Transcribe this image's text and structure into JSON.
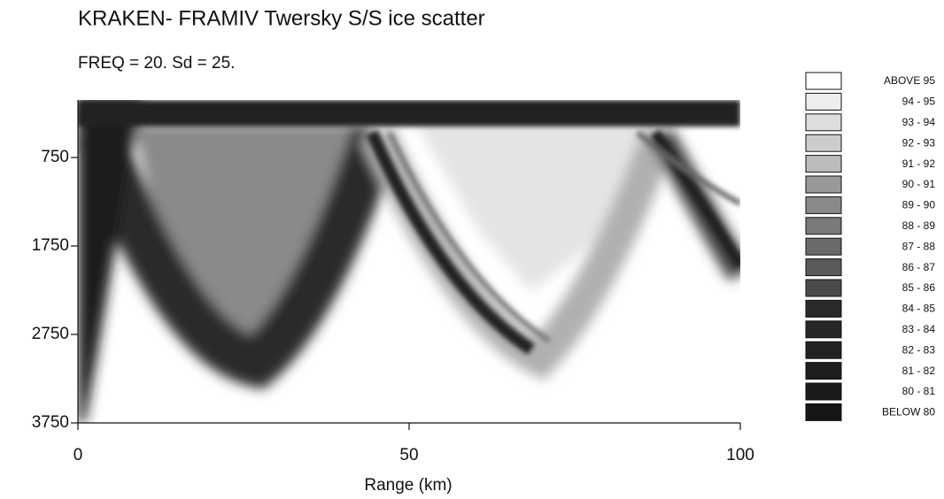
{
  "chart_data": {
    "type": "heatmap",
    "title": "KRAKEN- FRAMIV Twersky S/S ice scatter",
    "subtitle": "FREQ = 20.   Sd = 25.",
    "x_label": "Range (km)",
    "xlim": [
      0,
      100
    ],
    "xticks": [
      0,
      50,
      100
    ],
    "ylim": [
      100,
      3750
    ],
    "yticks": [
      750,
      1750,
      2750,
      3750
    ],
    "y_inverted": true,
    "legend": {
      "labels": [
        "ABOVE 95",
        "94 - 95",
        "93 - 94",
        "92 - 93",
        "91 - 92",
        "90 - 91",
        "89 - 90",
        "88 - 89",
        "87 - 88",
        "86 - 87",
        "85 - 86",
        "84 - 85",
        "83 - 84",
        "82 - 83",
        "81 - 82",
        "80 - 81",
        "BELOW 80"
      ],
      "colors": [
        "#ffffff",
        "#eeeeee",
        "#dddddd",
        "#cccccc",
        "#bbbbbb",
        "#999999",
        "#8a8a8a",
        "#7a7a7a",
        "#6a6a6a",
        "#5a5a5a",
        "#4a4a4a",
        "#2a2a2a",
        "#262626",
        "#222222",
        "#1e1e1e",
        "#1a1a1a",
        "#161616"
      ]
    }
  }
}
